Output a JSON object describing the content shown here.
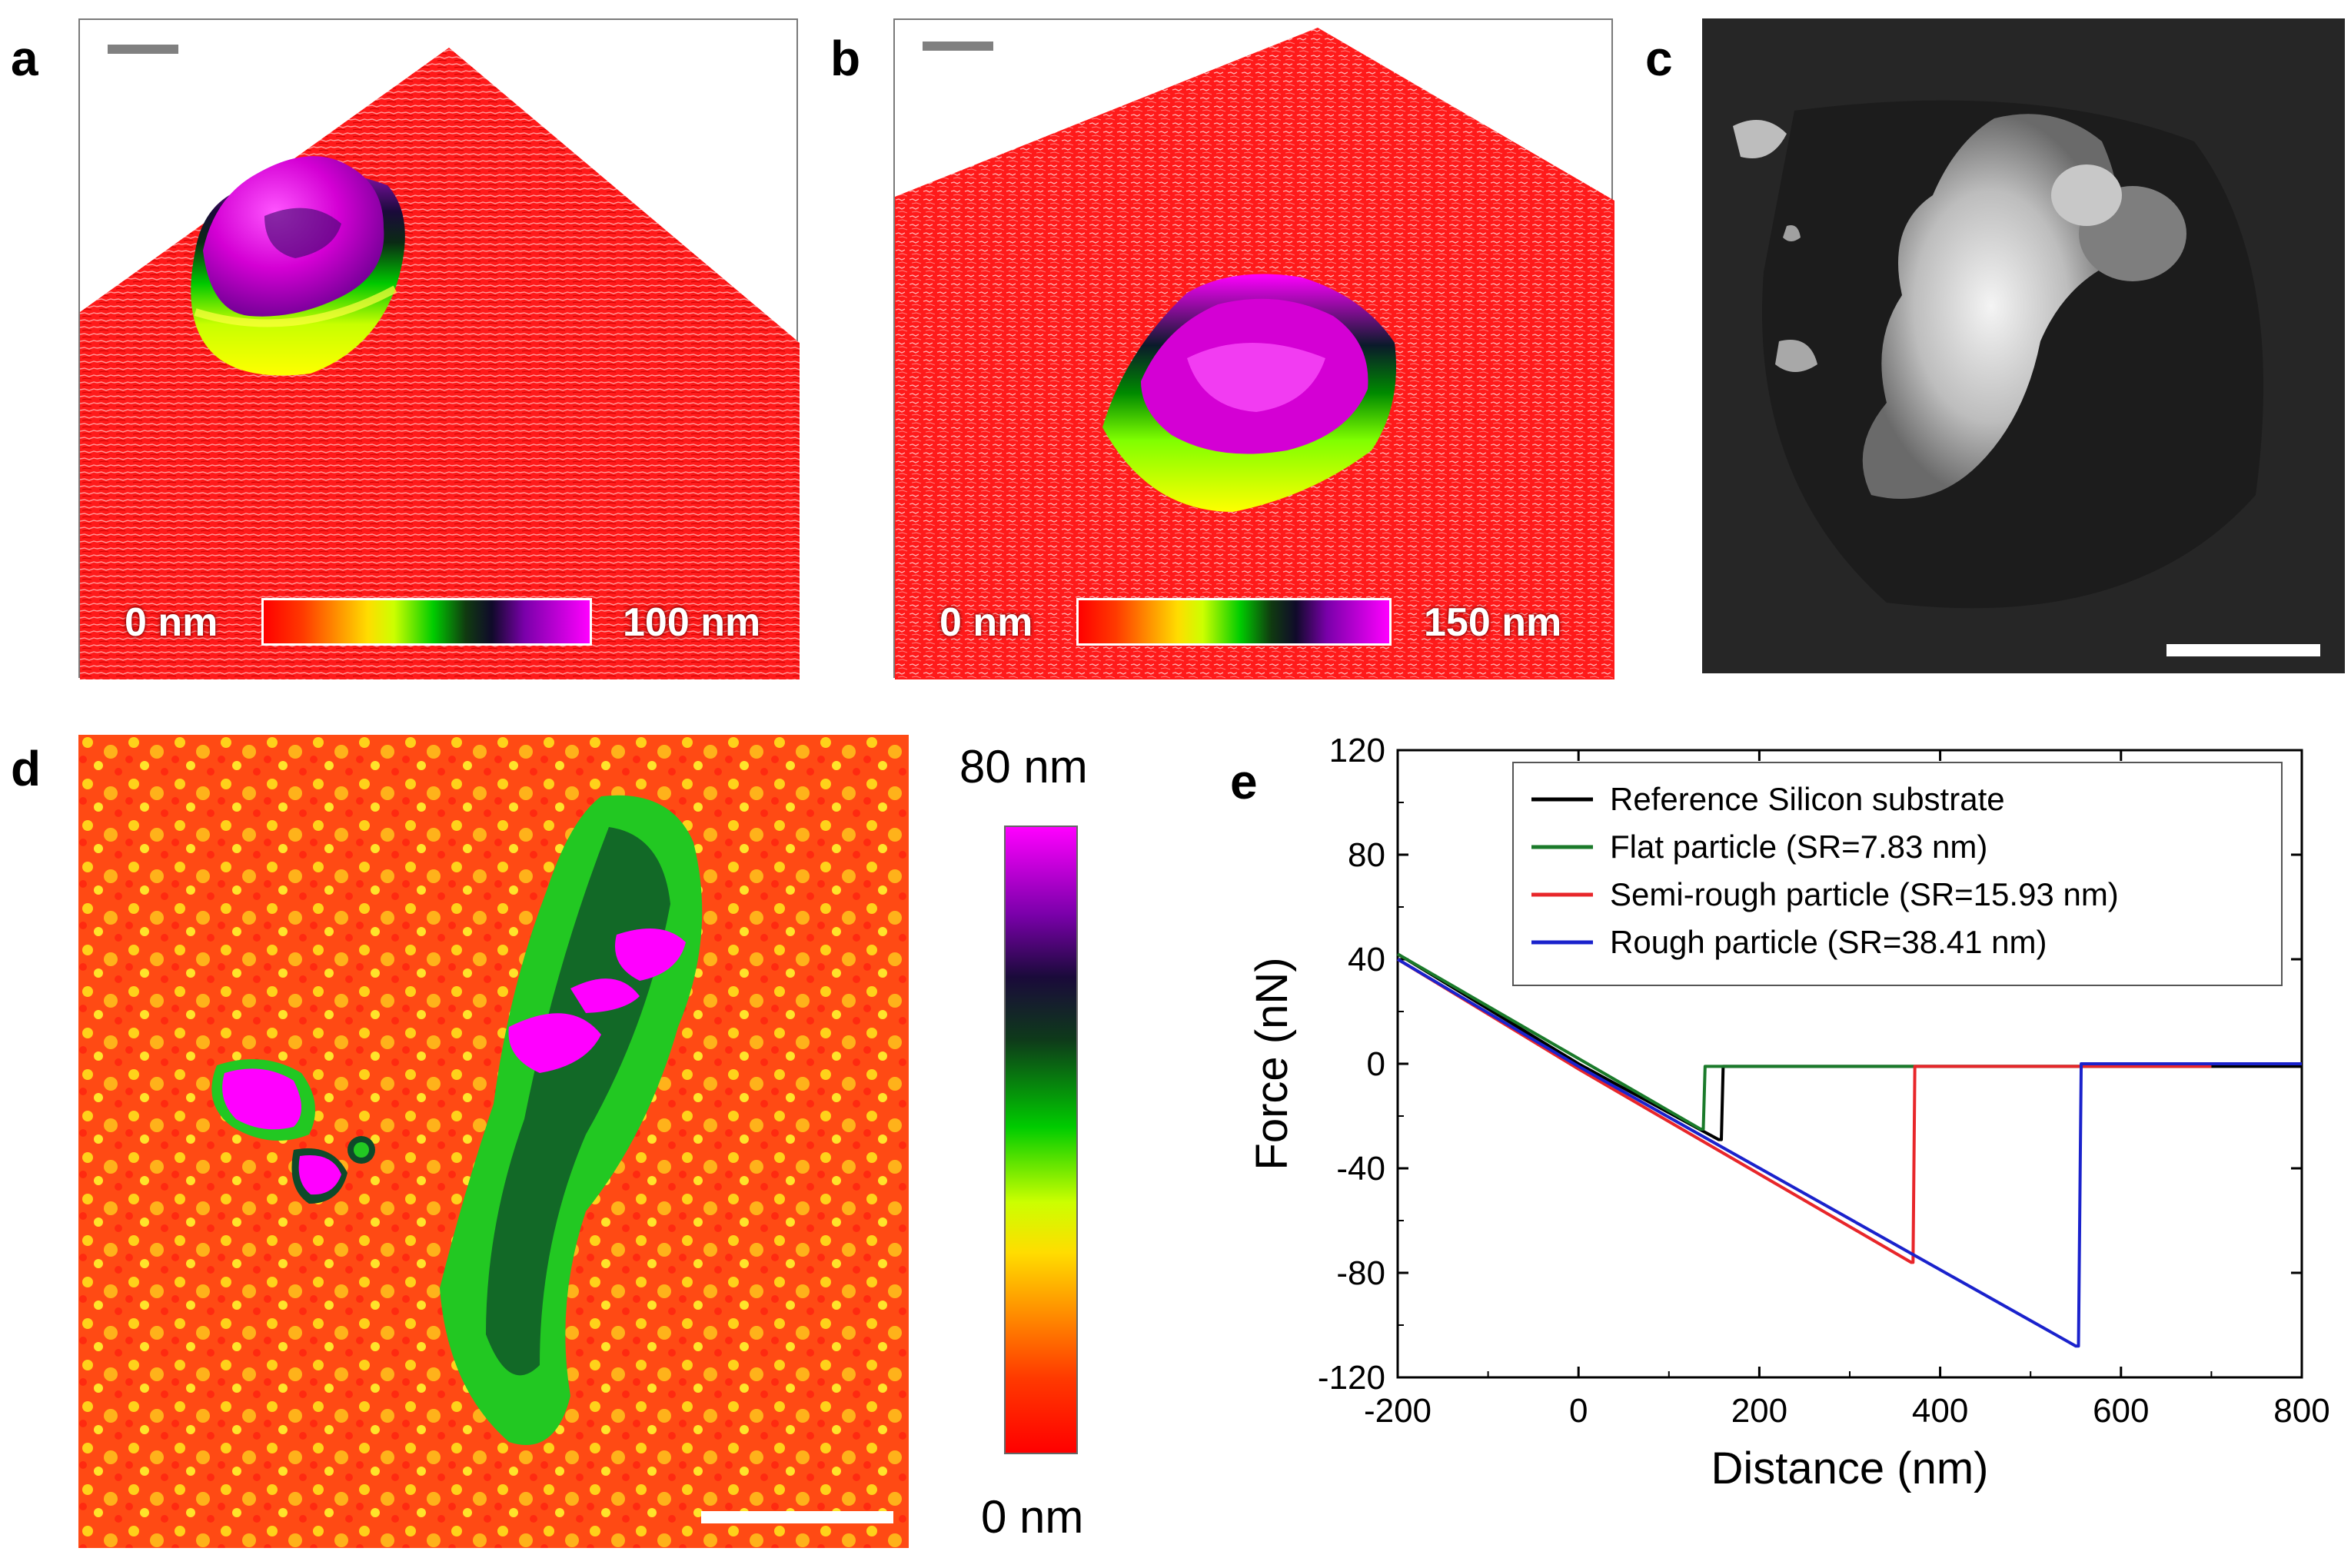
{
  "panels": {
    "a": {
      "letter": "a",
      "colorbar": {
        "min_label": "0 nm",
        "max_label": "100 nm"
      }
    },
    "b": {
      "letter": "b",
      "colorbar": {
        "min_label": "0 nm",
        "max_label": "150 nm"
      }
    },
    "c": {
      "letter": "c"
    },
    "d": {
      "letter": "d",
      "colorbar": {
        "max_label": "80 nm",
        "min_label": "0 nm"
      }
    },
    "e": {
      "letter": "e"
    }
  },
  "colors": {
    "substrate_red": "#ff1a1a",
    "magenta": "#ff00ff",
    "sem_background": "#2a2a2a",
    "line_black": "#000000",
    "line_green": "#1a7a2a",
    "line_red": "#e8262a",
    "line_blue": "#1a22cc"
  },
  "chart_data": {
    "type": "line",
    "panel": "e",
    "title": "",
    "xlabel": "Distance (nm)",
    "ylabel": "Force (nN)",
    "xlim": [
      -200,
      800
    ],
    "ylim": [
      -120,
      120
    ],
    "xticks": [
      -200,
      0,
      200,
      400,
      600,
      800
    ],
    "yticks": [
      -120,
      -80,
      -40,
      0,
      40,
      80,
      120
    ],
    "xtick_labels": [
      "-200",
      "0",
      "200",
      "400",
      "600",
      "800"
    ],
    "ytick_labels": [
      "-120",
      "-80",
      "-40",
      "0",
      "40",
      "80",
      "120"
    ],
    "legend_position": "top-right",
    "series": [
      {
        "name": "Reference Silicon substrate",
        "color": "#000000",
        "x": [
          -200,
          0,
          155,
          158,
          160,
          800
        ],
        "y": [
          42,
          0,
          -29,
          -29,
          -1,
          -1
        ]
      },
      {
        "name": "Flat particle (SR=7.83 nm)",
        "color": "#1a7a2a",
        "x": [
          -200,
          10,
          135,
          138,
          140,
          700
        ],
        "y": [
          42,
          0,
          -25,
          -25,
          -1,
          -1
        ]
      },
      {
        "name": "Semi-rough particle (SR=15.93 nm)",
        "color": "#e8262a",
        "x": [
          -200,
          0,
          368,
          370,
          372,
          700
        ],
        "y": [
          40,
          -2,
          -76,
          -76,
          -1,
          -1
        ]
      },
      {
        "name": "Rough particle (SR=38.41 nm)",
        "color": "#1a22cc",
        "x": [
          -200,
          0,
          550,
          553,
          556,
          800
        ],
        "y": [
          40,
          -1,
          -108,
          -108,
          0,
          0
        ]
      }
    ]
  }
}
